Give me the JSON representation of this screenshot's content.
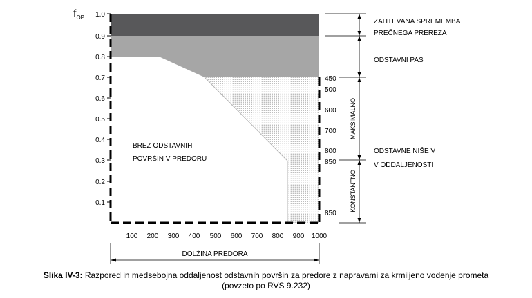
{
  "y_axis_label": {
    "main": "f",
    "sub": "OP"
  },
  "y_ticks": [
    "1.0",
    "0.9",
    "0.8",
    "0.7",
    "0.6",
    "0.5",
    "0.4",
    "0.3",
    "0.2",
    "0.1"
  ],
  "x_ticks": [
    "100",
    "200",
    "300",
    "400",
    "500",
    "600",
    "700",
    "800",
    "900",
    "1000"
  ],
  "x_axis_title": "DOLŽINA PREDORA",
  "region_labels": {
    "no_bays_line1": "BREZ ODSTAVNIH",
    "no_bays_line2": "POVRŠIN V PREDORU"
  },
  "right_ticks": [
    "450",
    "500",
    "600",
    "700",
    "800",
    "850",
    "850"
  ],
  "bracket_labels": {
    "maximum": "MAKSIMALNO",
    "constant": "KONSTANTNO"
  },
  "legend": {
    "cross_section_line1": "ZAHTEVANA SPREMEMBA",
    "cross_section_line2": "PREČNEGA PREREZA",
    "lane": "ODSTAVNI PAS",
    "niches_line1": "ODSTAVNE NIŠE V",
    "niches_line2": "V ODDALJENOSTI"
  },
  "caption": {
    "bold": "Slika IV-3:",
    "text": " Razpored in medsebojna oddaljenost odstavnih površin za predore z napravami za krmiljeno vodenje prometa",
    "line2": "(povzeto po RVS 9.232)"
  },
  "colors": {
    "dark_band": "#58585a",
    "light_band": "#a6a6a6",
    "dotted": "#b8b8b8"
  },
  "chart_data": {
    "type": "area",
    "xlim": [
      0,
      1000
    ],
    "ylim": [
      0,
      1.0
    ],
    "x_ticks": [
      100,
      200,
      300,
      400,
      500,
      600,
      700,
      800,
      900,
      1000
    ],
    "y_ticks": [
      0.1,
      0.2,
      0.3,
      0.4,
      0.5,
      0.6,
      0.7,
      0.8,
      0.9,
      1.0
    ],
    "regions": [
      {
        "name": "ZAHTEVANA SPREMEMBA PREČNEGA PREREZA",
        "fill": "dark",
        "y_range": [
          0.9,
          1.0
        ]
      },
      {
        "name": "ODSTAVNI PAS",
        "fill": "light",
        "y_range": [
          0.7,
          0.9
        ],
        "lower_boundary": [
          [
            0,
            0.8
          ],
          [
            230,
            0.8
          ],
          [
            450,
            0.7
          ],
          [
            1000,
            0.7
          ]
        ]
      },
      {
        "name": "ODSTAVNE NIŠE V V ODDALJENOSTI",
        "fill": "dotted",
        "upper": 0.7,
        "left_boundary": [
          [
            450,
            0.7
          ],
          [
            850,
            0.3
          ],
          [
            850,
            0.0
          ]
        ]
      }
    ],
    "right_scale": [
      {
        "label": "450",
        "y": 0.7
      },
      {
        "label": "500",
        "y": 0.65
      },
      {
        "label": "600",
        "y": 0.55
      },
      {
        "label": "700",
        "y": 0.45
      },
      {
        "label": "800",
        "y": 0.35
      },
      {
        "label": "850",
        "y": 0.3
      },
      {
        "label": "850",
        "y": 0.05
      }
    ]
  }
}
